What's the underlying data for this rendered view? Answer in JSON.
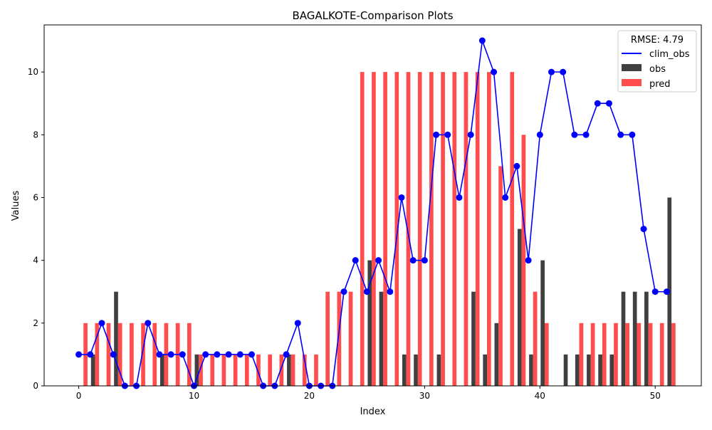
{
  "chart_data": {
    "type": "bar",
    "title": "BAGALKOTE-Comparison Plots",
    "xlabel": "Index",
    "ylabel": "Values",
    "xlim": [
      -3,
      54
    ],
    "ylim": [
      0,
      11.5
    ],
    "xticks": [
      0,
      10,
      20,
      30,
      40,
      50
    ],
    "yticks": [
      0,
      2,
      4,
      6,
      8,
      10
    ],
    "grid": false,
    "legend": {
      "title": "RMSE: 4.79",
      "placement": "top-right",
      "entries": [
        {
          "label": "clim_obs",
          "kind": "line",
          "color": "#0000ff"
        },
        {
          "label": "obs",
          "kind": "bar",
          "color": "#404040"
        },
        {
          "label": "pred",
          "kind": "bar",
          "color": "#ff4d4d"
        }
      ]
    },
    "x": [
      0,
      1,
      2,
      3,
      4,
      5,
      6,
      7,
      8,
      9,
      10,
      11,
      12,
      13,
      14,
      15,
      16,
      17,
      18,
      19,
      20,
      21,
      22,
      23,
      24,
      25,
      26,
      27,
      28,
      29,
      30,
      31,
      32,
      33,
      34,
      35,
      36,
      37,
      38,
      39,
      40,
      41,
      42,
      43,
      44,
      45,
      46,
      47,
      48,
      49,
      50,
      51
    ],
    "series": [
      {
        "name": "clim_obs",
        "kind": "line",
        "color": "#0000ff",
        "values": [
          1,
          1,
          2,
          1,
          0,
          0,
          2,
          1,
          1,
          1,
          0,
          1,
          1,
          1,
          1,
          1,
          0,
          0,
          1,
          2,
          0,
          0,
          0,
          3,
          4,
          3,
          4,
          3,
          6,
          4,
          4,
          8,
          8,
          6,
          8,
          11,
          10,
          6,
          7,
          4,
          8,
          10,
          10,
          8,
          8,
          9,
          9,
          8,
          8,
          5,
          3,
          3
        ]
      },
      {
        "name": "obs",
        "kind": "bar",
        "color": "#404040",
        "values": [
          0,
          1,
          0,
          3,
          0,
          0,
          0,
          1,
          0,
          0,
          1,
          0,
          0,
          0,
          0,
          0,
          0,
          0,
          1,
          0,
          0,
          0,
          0,
          0,
          0,
          4,
          3,
          0,
          1,
          1,
          0,
          1,
          0,
          0,
          3,
          1,
          2,
          0,
          5,
          1,
          4,
          0,
          1,
          1,
          1,
          1,
          1,
          3,
          3,
          3,
          0,
          6
        ]
      },
      {
        "name": "pred",
        "kind": "bar",
        "color": "#ff4d4d",
        "values": [
          2,
          2,
          2,
          2,
          2,
          2,
          2,
          2,
          2,
          2,
          1,
          1,
          1,
          1,
          1,
          1,
          1,
          1,
          1,
          1,
          1,
          3,
          3,
          3,
          10,
          10,
          10,
          10,
          10,
          10,
          10,
          10,
          10,
          10,
          10,
          10,
          7,
          10,
          8,
          3,
          2,
          0,
          0,
          2,
          2,
          2,
          2,
          2,
          2,
          2,
          2,
          2
        ]
      }
    ]
  }
}
